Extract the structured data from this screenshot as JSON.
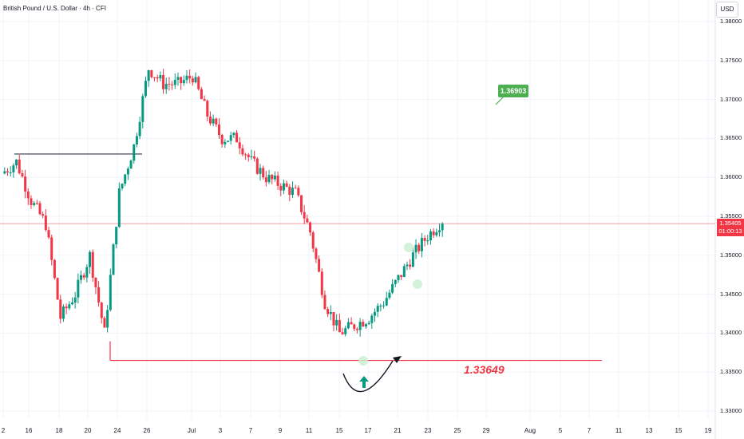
{
  "header": {
    "symbol_title": "British Pound / U.S. Dollar · 4h · CFI",
    "currency_button": "USD"
  },
  "price_label": {
    "price": "1.35405",
    "countdown": "01:00:13",
    "color": "#f23645"
  },
  "annotations": {
    "target_label": "1.36903",
    "support_label": "1.33649",
    "target_color": "#4caf50",
    "support_color": "#f23645",
    "arrow_color": "#089981"
  },
  "colors": {
    "up": "#089981",
    "down": "#f23645",
    "grid": "#f0f3fa"
  },
  "chart_data": {
    "type": "candlestick",
    "timeframe": "4h",
    "y_ticks": [
      "1.38000",
      "1.37500",
      "1.37000",
      "1.36500",
      "1.36000",
      "1.35500",
      "1.35000",
      "1.34500",
      "1.34000",
      "1.33500",
      "1.33000"
    ],
    "x_ticks": [
      "2",
      "16",
      "18",
      "20",
      "24",
      "26",
      "Jul",
      "3",
      "7",
      "9",
      "11",
      "15",
      "17",
      "21",
      "23",
      "25",
      "29",
      "Aug",
      "5",
      "7",
      "11",
      "13",
      "15",
      "19"
    ],
    "ylim": [
      1.33,
      1.38
    ],
    "levels": {
      "resistance_line": 1.363,
      "support_line": 1.3365,
      "support_value": 1.33649,
      "target_value": 1.36903,
      "current_price": 1.35405
    },
    "path_points": [
      {
        "date": "Jun 12",
        "price": 1.3605
      },
      {
        "date": "Jun 13",
        "price": 1.362
      },
      {
        "date": "Jun 16",
        "price": 1.357
      },
      {
        "date": "Jun 17",
        "price": 1.354
      },
      {
        "date": "Jun 18",
        "price": 1.342
      },
      {
        "date": "Jun 19",
        "price": 1.345
      },
      {
        "date": "Jun 20",
        "price": 1.35
      },
      {
        "date": "Jun 23",
        "price": 1.34
      },
      {
        "date": "Jun 24",
        "price": 1.358
      },
      {
        "date": "Jun 25",
        "price": 1.364
      },
      {
        "date": "Jun 26",
        "price": 1.374
      },
      {
        "date": "Jun 27",
        "price": 1.372
      },
      {
        "date": "Jun 30",
        "price": 1.372
      },
      {
        "date": "Jul 1",
        "price": 1.373
      },
      {
        "date": "Jul 2",
        "price": 1.368
      },
      {
        "date": "Jul 3",
        "price": 1.365
      },
      {
        "date": "Jul 4",
        "price": 1.365
      },
      {
        "date": "Jul 7",
        "price": 1.362
      },
      {
        "date": "Jul 8",
        "price": 1.36
      },
      {
        "date": "Jul 9",
        "price": 1.359
      },
      {
        "date": "Jul 10",
        "price": 1.358
      },
      {
        "date": "Jul 11",
        "price": 1.353
      },
      {
        "date": "Jul 14",
        "price": 1.344
      },
      {
        "date": "Jul 15",
        "price": 1.34
      },
      {
        "date": "Jul 16",
        "price": 1.341
      },
      {
        "date": "Jul 17",
        "price": 1.342
      },
      {
        "date": "Jul 18",
        "price": 1.344
      },
      {
        "date": "Jul 21",
        "price": 1.347
      },
      {
        "date": "Jul 22",
        "price": 1.35
      },
      {
        "date": "Jul 23",
        "price": 1.3525
      },
      {
        "date": "Jul 24",
        "price": 1.3545
      }
    ]
  }
}
